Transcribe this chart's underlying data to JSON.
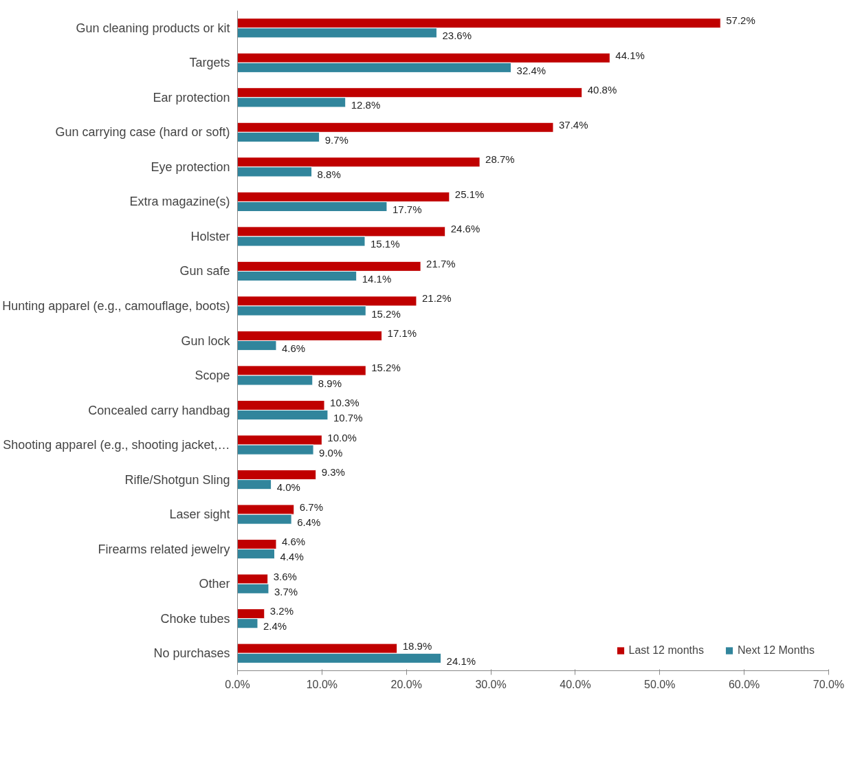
{
  "chart_data": {
    "type": "bar",
    "orientation": "horizontal",
    "categories": [
      "Gun cleaning products or kit",
      "Targets",
      "Ear protection",
      "Gun carrying case (hard or soft)",
      "Eye protection",
      "Extra magazine(s)",
      "Holster",
      "Gun safe",
      "Hunting apparel (e.g., camouflage, boots)",
      "Gun lock",
      "Scope",
      "Concealed carry handbag",
      "Shooting apparel (e.g., shooting jacket,…",
      "Rifle/Shotgun Sling",
      "Laser sight",
      "Firearms related jewelry",
      "Other",
      "Choke tubes",
      "No purchases"
    ],
    "series": [
      {
        "name": "Last 12 months",
        "color": "#c00000",
        "values": [
          57.2,
          44.1,
          40.8,
          37.4,
          28.7,
          25.1,
          24.6,
          21.7,
          21.2,
          17.1,
          15.2,
          10.3,
          10.0,
          9.3,
          6.7,
          4.6,
          3.6,
          3.2,
          18.9
        ],
        "value_labels": [
          "57.2%",
          "44.1%",
          "40.8%",
          "37.4%",
          "28.7%",
          "25.1%",
          "24.6%",
          "21.7%",
          "21.2%",
          "17.1%",
          "15.2%",
          "10.3%",
          "10.0%",
          "9.3%",
          "6.7%",
          "4.6%",
          "3.6%",
          "3.2%",
          "18.9%"
        ]
      },
      {
        "name": "Next 12 Months",
        "color": "#31859c",
        "values": [
          23.6,
          32.4,
          12.8,
          9.7,
          8.8,
          17.7,
          15.1,
          14.1,
          15.2,
          4.6,
          8.9,
          10.7,
          9.0,
          4.0,
          6.4,
          4.4,
          3.7,
          2.4,
          24.1
        ],
        "value_labels": [
          "23.6%",
          "32.4%",
          "12.8%",
          "9.7%",
          "8.8%",
          "17.7%",
          "15.1%",
          "14.1%",
          "15.2%",
          "4.6%",
          "8.9%",
          "10.7%",
          "9.0%",
          "4.0%",
          "6.4%",
          "4.4%",
          "3.7%",
          "2.4%",
          "24.1%"
        ]
      }
    ],
    "data_labels": true,
    "xlim": [
      0,
      70
    ],
    "xticks": [
      {
        "value": 0,
        "label": "0.0%"
      },
      {
        "value": 10,
        "label": "10.0%"
      },
      {
        "value": 20,
        "label": "20.0%"
      },
      {
        "value": 30,
        "label": "30.0%"
      },
      {
        "value": 40,
        "label": "40.0%"
      },
      {
        "value": 50,
        "label": "50.0%"
      },
      {
        "value": 60,
        "label": "60.0%"
      },
      {
        "value": 70,
        "label": "70.0%"
      }
    ],
    "grid": false,
    "legend": "bottom right"
  }
}
